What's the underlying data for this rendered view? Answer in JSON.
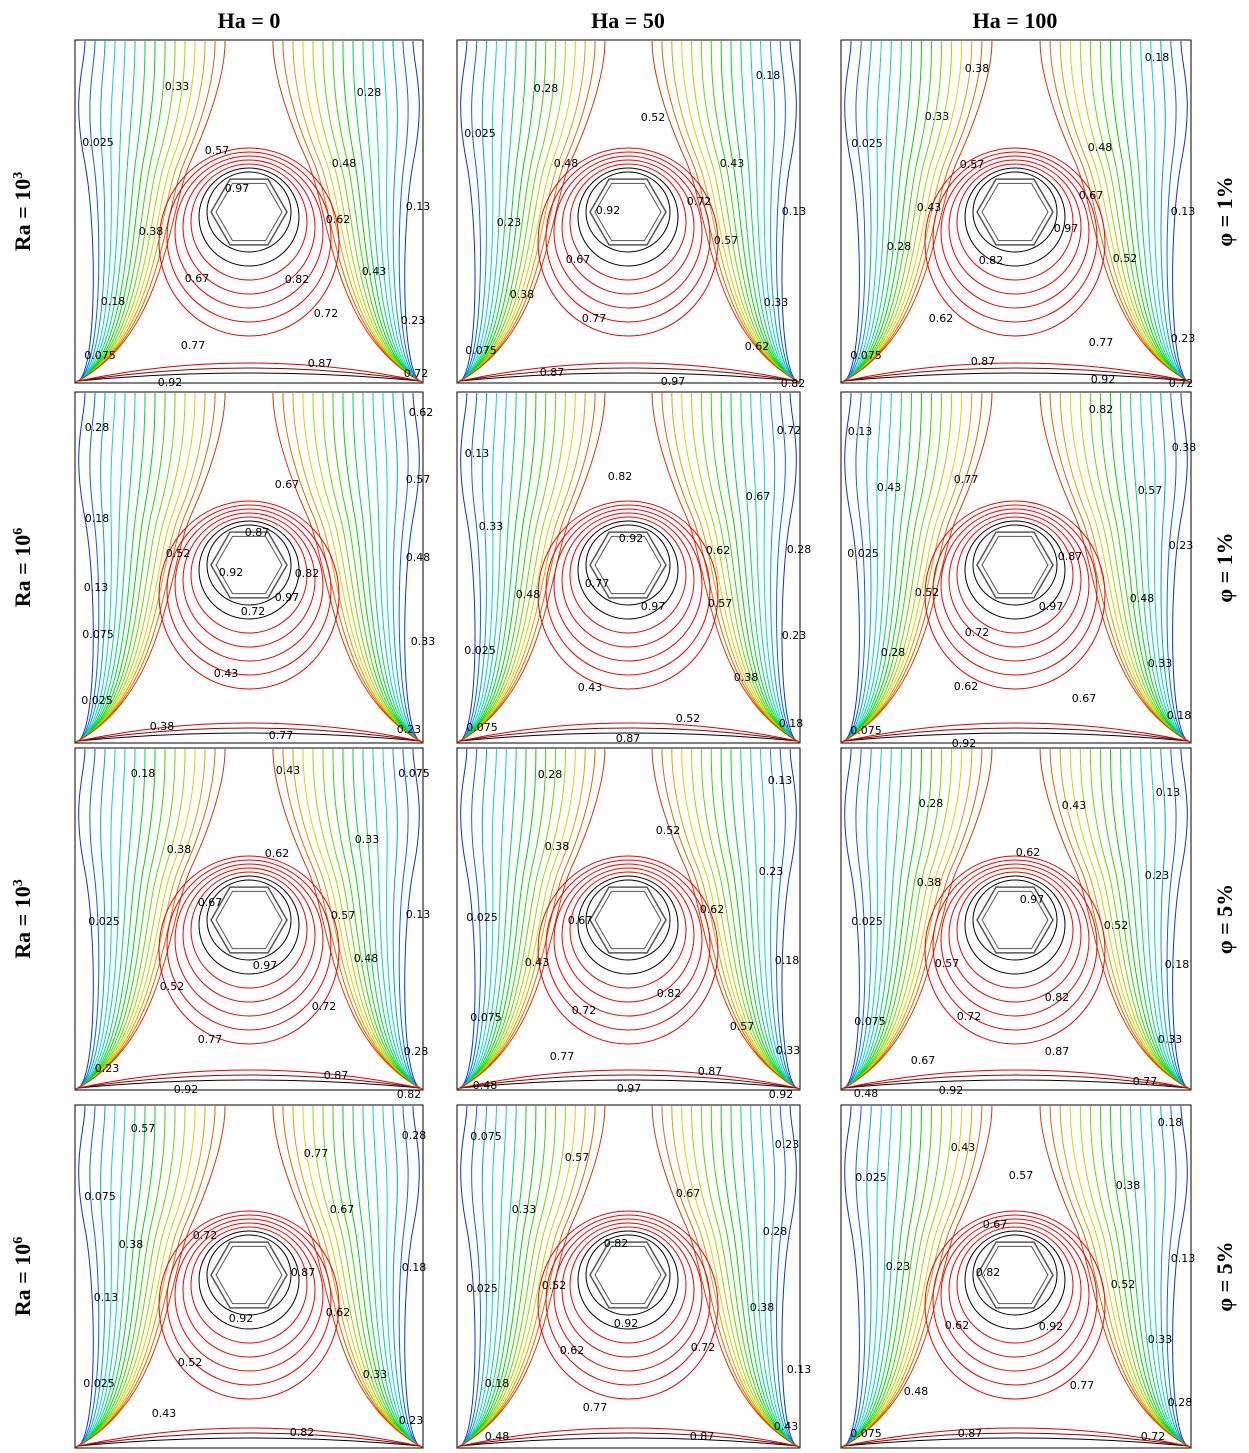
{
  "column_headers": [
    "Ha = 0",
    "Ha = 50",
    "Ha = 100"
  ],
  "row_labels": [
    {
      "ra": "Ra = 10",
      "exp": "3",
      "phi": "φ = 1%"
    },
    {
      "ra": "Ra = 10",
      "exp": "6",
      "phi": "φ = 1%"
    },
    {
      "ra": "Ra = 10",
      "exp": "3",
      "phi": "φ = 5%"
    },
    {
      "ra": "Ra = 10",
      "exp": "6",
      "phi": "φ = 5%"
    }
  ],
  "panels": [
    {
      "labels": [
        "0.33",
        "0.28",
        "0.025",
        "0.57",
        "0.48",
        "0.97",
        "0.13",
        "0.38",
        "0.62",
        "0.43",
        "0.67",
        "0.82",
        "0.18",
        "0.72",
        "0.23",
        "0.77",
        "0.075",
        "0.87",
        "0.92",
        "0.72"
      ]
    },
    {
      "labels": [
        "0.28",
        "0.18",
        "0.52",
        "0.025",
        "0.48",
        "0.43",
        "0.92",
        "0.72",
        "0.13",
        "0.23",
        "0.57",
        "0.67",
        "0.38",
        "0.33",
        "0.77",
        "0.62",
        "0.075",
        "0.87",
        "0.97",
        "0.82"
      ]
    },
    {
      "labels": [
        "0.38",
        "0.18",
        "0.33",
        "0.025",
        "0.48",
        "0.57",
        "0.67",
        "0.43",
        "0.13",
        "0.97",
        "0.28",
        "0.82",
        "0.52",
        "0.62",
        "0.77",
        "0.23",
        "0.075",
        "0.87",
        "0.92",
        "0.72"
      ]
    },
    {
      "labels": [
        "0.62",
        "0.28",
        "0.67",
        "0.57",
        "0.18",
        "0.87",
        "0.52",
        "0.92",
        "0.82",
        "0.48",
        "0.13",
        "0.97",
        "0.72",
        "0.075",
        "0.33",
        "0.43",
        "0.025",
        "0.38",
        "0.23",
        "0.77"
      ]
    },
    {
      "labels": [
        "0.72",
        "0.13",
        "0.82",
        "0.67",
        "0.33",
        "0.92",
        "0.62",
        "0.28",
        "0.77",
        "0.48",
        "0.97",
        "0.57",
        "0.23",
        "0.025",
        "0.43",
        "0.38",
        "0.52",
        "0.075",
        "0.18",
        "0.87"
      ]
    },
    {
      "labels": [
        "0.82",
        "0.13",
        "0.38",
        "0.77",
        "0.43",
        "0.57",
        "0.025",
        "0.87",
        "0.23",
        "0.52",
        "0.97",
        "0.48",
        "0.72",
        "0.28",
        "0.33",
        "0.62",
        "0.67",
        "0.18",
        "0.075",
        "0.92"
      ]
    },
    {
      "labels": [
        "0.18",
        "0.43",
        "0.075",
        "0.38",
        "0.62",
        "0.33",
        "0.67",
        "0.57",
        "0.13",
        "0.025",
        "0.97",
        "0.48",
        "0.52",
        "0.72",
        "0.77",
        "0.28",
        "0.23",
        "0.87",
        "0.92",
        "0.82"
      ]
    },
    {
      "labels": [
        "0.28",
        "0.13",
        "0.52",
        "0.38",
        "0.23",
        "0.67",
        "0.62",
        "0.025",
        "0.43",
        "0.18",
        "0.82",
        "0.72",
        "0.075",
        "0.57",
        "0.77",
        "0.33",
        "0.87",
        "0.48",
        "0.97",
        "0.92"
      ]
    },
    {
      "labels": [
        "0.13",
        "0.28",
        "0.43",
        "0.62",
        "0.38",
        "0.23",
        "0.97",
        "0.025",
        "0.52",
        "0.57",
        "0.18",
        "0.82",
        "0.075",
        "0.72",
        "0.87",
        "0.33",
        "0.67",
        "0.77",
        "0.48",
        "0.92"
      ]
    },
    {
      "labels": [
        "0.57",
        "0.28",
        "0.77",
        "0.075",
        "0.67",
        "0.72",
        "0.38",
        "0.87",
        "0.18",
        "0.13",
        "0.92",
        "0.62",
        "0.52",
        "0.33",
        "0.025",
        "0.43",
        "0.82",
        "0.23"
      ]
    },
    {
      "labels": [
        "0.075",
        "0.23",
        "0.57",
        "0.67",
        "0.33",
        "0.28",
        "0.82",
        "0.025",
        "0.52",
        "0.38",
        "0.92",
        "0.62",
        "0.72",
        "0.13",
        "0.18",
        "0.77",
        "0.43",
        "0.48",
        "0.87"
      ]
    },
    {
      "labels": [
        "0.18",
        "0.43",
        "0.57",
        "0.025",
        "0.38",
        "0.67",
        "0.13",
        "0.23",
        "0.82",
        "0.52",
        "0.62",
        "0.92",
        "0.33",
        "0.48",
        "0.77",
        "0.28",
        "0.075",
        "0.87",
        "0.72"
      ]
    }
  ]
}
